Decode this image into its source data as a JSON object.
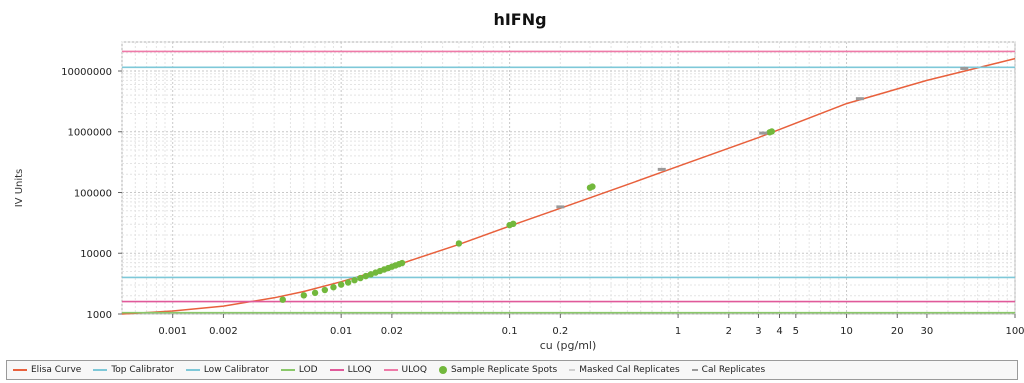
{
  "chart_data": {
    "type": "line",
    "title": "hIFNg",
    "xlabel": "cu (pg/ml)",
    "ylabel": "IV Units",
    "x_scale": "log",
    "y_scale": "log",
    "xlim": [
      0.0005,
      100
    ],
    "ylim": [
      1000,
      30000000
    ],
    "grid": true,
    "x_ticks": [
      {
        "v": 0.001,
        "label": "0.001"
      },
      {
        "v": 0.002,
        "label": "0.002"
      },
      {
        "v": 0.01,
        "label": "0.01"
      },
      {
        "v": 0.02,
        "label": "0.02"
      },
      {
        "v": 0.1,
        "label": "0.1"
      },
      {
        "v": 0.2,
        "label": "0.2"
      },
      {
        "v": 1,
        "label": "1"
      },
      {
        "v": 2,
        "label": "2"
      },
      {
        "v": 3,
        "label": "3"
      },
      {
        "v": 4,
        "label": "4"
      },
      {
        "v": 5,
        "label": "5"
      },
      {
        "v": 10,
        "label": "10"
      },
      {
        "v": 20,
        "label": "20"
      },
      {
        "v": 30,
        "label": "30"
      },
      {
        "v": 100,
        "label": "100"
      }
    ],
    "y_ticks": [
      {
        "v": 1000,
        "label": "1000"
      },
      {
        "v": 10000,
        "label": "10000"
      },
      {
        "v": 100000,
        "label": "100000"
      },
      {
        "v": 1000000,
        "label": "1000000"
      },
      {
        "v": 10000000,
        "label": "10000000"
      }
    ],
    "series": [
      {
        "name": "Elisa Curve",
        "color": "#e8603c",
        "kind": "line",
        "x": [
          0.0005,
          0.001,
          0.002,
          0.004,
          0.006,
          0.01,
          0.02,
          0.05,
          0.1,
          0.2,
          0.5,
          1,
          3,
          10,
          30,
          100
        ],
        "y": [
          1000,
          1120,
          1350,
          1850,
          2350,
          3400,
          6000,
          14000,
          28000,
          55000,
          135000,
          270000,
          800000,
          2900000,
          7000000,
          16000000
        ]
      },
      {
        "name": "Top Calibrator",
        "color": "#7ec8d8",
        "kind": "hline",
        "value": 11500000
      },
      {
        "name": "Low Calibrator",
        "color": "#7ec8d8",
        "kind": "hline",
        "value": 4000
      },
      {
        "name": "LOD",
        "color": "#8ac86a",
        "kind": "hline",
        "value": 1050
      },
      {
        "name": "LLOQ",
        "color": "#e05a9a",
        "kind": "hline",
        "value": 1600
      },
      {
        "name": "ULOQ",
        "color": "#ee7aa8",
        "kind": "hline",
        "value": 21000000
      },
      {
        "name": "Sample Replicate Spots",
        "color": "#72b83c",
        "kind": "scatter",
        "x": [
          0.0045,
          0.006,
          0.007,
          0.008,
          0.009,
          0.01,
          0.011,
          0.012,
          0.013,
          0.014,
          0.015,
          0.016,
          0.017,
          0.018,
          0.019,
          0.02,
          0.021,
          0.022,
          0.023,
          0.05,
          0.1,
          0.105,
          0.3,
          0.31,
          3.5,
          3.6
        ],
        "y": [
          1720,
          2030,
          2230,
          2480,
          2760,
          3050,
          3300,
          3600,
          3900,
          4200,
          4500,
          4800,
          5100,
          5400,
          5700,
          6000,
          6300,
          6600,
          6900,
          14500,
          29000,
          30500,
          120000,
          125000,
          980000,
          1010000
        ]
      },
      {
        "name": "Masked Cal Replicates",
        "color": "#cfcfcf",
        "kind": "scatter",
        "x": [],
        "y": []
      },
      {
        "name": "Cal Replicates",
        "color": "#9a9a9a",
        "kind": "scatter",
        "x": [
          0.2,
          0.8,
          3.2,
          12,
          50
        ],
        "y": [
          58000,
          240000,
          950000,
          3500000,
          11000000
        ]
      }
    ]
  },
  "legend": [
    {
      "label": "Elisa Curve",
      "color": "#e8603c",
      "kind": "line"
    },
    {
      "label": "Top Calibrator",
      "color": "#7ec8d8",
      "kind": "line"
    },
    {
      "label": "Low Calibrator",
      "color": "#7ec8d8",
      "kind": "line"
    },
    {
      "label": "LOD",
      "color": "#8ac86a",
      "kind": "line"
    },
    {
      "label": "LLOQ",
      "color": "#e05a9a",
      "kind": "line"
    },
    {
      "label": "ULOQ",
      "color": "#ee7aa8",
      "kind": "line"
    },
    {
      "label": "Sample Replicate Spots",
      "color": "#72b83c",
      "kind": "dot"
    },
    {
      "label": "Masked Cal Replicates",
      "color": "#cfcfcf",
      "kind": "dash"
    },
    {
      "label": "Cal Replicates",
      "color": "#9a9a9a",
      "kind": "dash"
    }
  ]
}
